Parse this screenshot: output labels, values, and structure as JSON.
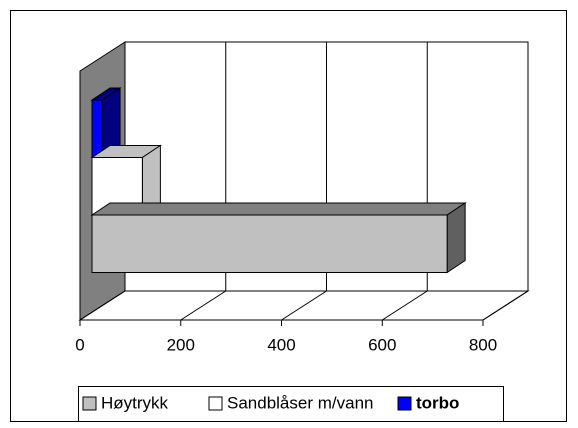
{
  "chart_data": {
    "type": "bar",
    "series": [
      {
        "name": "Høytrykk",
        "color": "#c0c0c0",
        "values": [
          705
        ]
      },
      {
        "name": "Sandblåser m/vann",
        "color": "#ffffff",
        "values": [
          100
        ]
      },
      {
        "name": "torbo",
        "color": "#0000ff",
        "values": [
          20
        ]
      }
    ],
    "xlim": [
      0,
      800
    ],
    "xticks": [
      0,
      200,
      400,
      600,
      800
    ],
    "grid": true
  }
}
